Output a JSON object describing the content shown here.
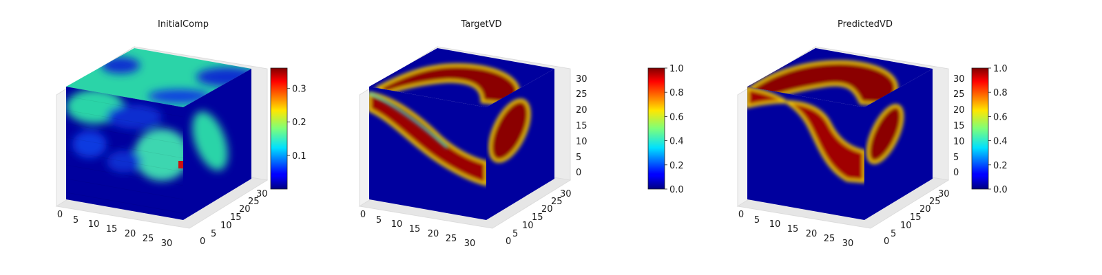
{
  "colormap": "jet",
  "chart_data": [
    {
      "type": "voxel-3d",
      "title": "InitialComp",
      "grid": true,
      "x_ticks": [
        "0",
        "5",
        "10",
        "15",
        "20",
        "25",
        "30"
      ],
      "y_ticks": [
        "0",
        "5",
        "10",
        "15",
        "20",
        "25",
        "30"
      ],
      "z_ticks": [],
      "xlim": [
        0,
        32
      ],
      "ylim": [
        0,
        32
      ],
      "zlim": [
        0,
        32
      ],
      "colorbar": {
        "range": [
          0.0,
          0.36
        ],
        "ticks": [
          "0.1",
          "0.2",
          "0.3"
        ],
        "tick_values": [
          0.1,
          0.2,
          0.3
        ]
      },
      "field": {
        "background": 0.02,
        "max": 0.36
      }
    },
    {
      "type": "voxel-3d",
      "title": "TargetVD",
      "grid": true,
      "x_ticks": [
        "0",
        "5",
        "10",
        "15",
        "20",
        "25",
        "30"
      ],
      "y_ticks": [
        "0",
        "5",
        "10",
        "15",
        "20",
        "25",
        "30"
      ],
      "z_ticks": [
        "0",
        "5",
        "10",
        "15",
        "20",
        "25",
        "30"
      ],
      "xlim": [
        0,
        32
      ],
      "ylim": [
        0,
        32
      ],
      "zlim": [
        0,
        32
      ],
      "colorbar": {
        "range": [
          0.0,
          1.0
        ],
        "ticks": [
          "0.0",
          "0.2",
          "0.4",
          "0.6",
          "0.8",
          "1.0"
        ],
        "tick_values": [
          0.0,
          0.2,
          0.4,
          0.6,
          0.8,
          1.0
        ]
      },
      "field": {
        "background": 0.02,
        "max": 1.0
      }
    },
    {
      "type": "voxel-3d",
      "title": "PredictedVD",
      "grid": true,
      "x_ticks": [
        "0",
        "5",
        "10",
        "15",
        "20",
        "25",
        "30"
      ],
      "y_ticks": [
        "0",
        "5",
        "10",
        "15",
        "20",
        "25",
        "30"
      ],
      "z_ticks": [
        "0",
        "5",
        "10",
        "15",
        "20",
        "25",
        "30"
      ],
      "xlim": [
        0,
        32
      ],
      "ylim": [
        0,
        32
      ],
      "zlim": [
        0,
        32
      ],
      "colorbar": {
        "range": [
          0.0,
          1.0
        ],
        "ticks": [
          "0.0",
          "0.2",
          "0.4",
          "0.6",
          "0.8",
          "1.0"
        ],
        "tick_values": [
          0.0,
          0.2,
          0.4,
          0.6,
          0.8,
          1.0
        ]
      },
      "field": {
        "background": 0.02,
        "max": 1.0
      }
    }
  ]
}
